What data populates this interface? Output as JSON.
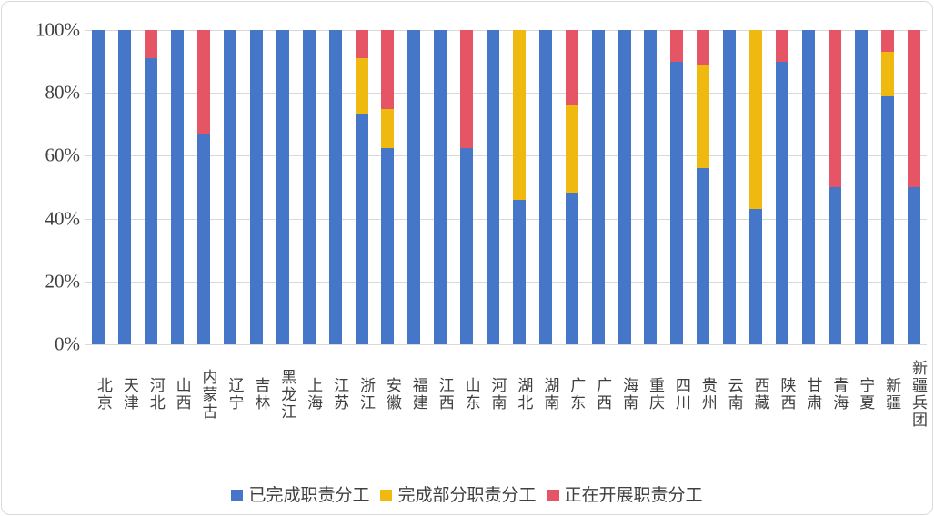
{
  "colors": {
    "blue": "#4676C8",
    "yellow": "#F0B90F",
    "red": "#E65566",
    "grid": "#D9D9D9",
    "text": "#3F3F3F"
  },
  "chart_data": {
    "type": "bar",
    "variant": "stacked-100-percent-column",
    "title": "",
    "xlabel": "",
    "ylabel": "",
    "grid": true,
    "legend_position": "bottom",
    "y_axis": {
      "range": [
        0,
        100
      ],
      "tick_labels_top_to_bottom": [
        "100%",
        "80%",
        "60%",
        "40%",
        "20%",
        "0%"
      ]
    },
    "categories": [
      "北京",
      "天津",
      "河北",
      "山西",
      "内蒙古",
      "辽宁",
      "吉林",
      "黑龙江",
      "上海",
      "江苏",
      "浙江",
      "安徽",
      "福建",
      "江西",
      "山东",
      "河南",
      "湖北",
      "湖南",
      "广东",
      "广西",
      "海南",
      "重庆",
      "四川",
      "贵州",
      "云南",
      "西藏",
      "陕西",
      "甘肃",
      "青海",
      "宁夏",
      "新疆",
      "新疆兵团"
    ],
    "series": [
      {
        "name": "已完成职责分工",
        "color_key": "blue",
        "values": [
          100,
          100,
          91,
          100,
          67,
          100,
          100,
          100,
          100,
          100,
          73,
          62.5,
          100,
          100,
          62.5,
          100,
          46,
          100,
          48,
          100,
          100,
          100,
          90,
          56,
          100,
          43,
          90,
          100,
          50,
          100,
          79,
          50
        ]
      },
      {
        "name": "完成部分职责分工",
        "color_key": "yellow",
        "values": [
          0,
          0,
          0,
          0,
          0,
          0,
          0,
          0,
          0,
          0,
          18,
          12.5,
          0,
          0,
          0,
          0,
          54,
          0,
          28,
          0,
          0,
          0,
          0,
          33,
          0,
          57,
          0,
          0,
          0,
          0,
          14,
          0
        ]
      },
      {
        "name": "正在开展职责分工",
        "color_key": "red",
        "values": [
          0,
          0,
          9,
          0,
          33,
          0,
          0,
          0,
          0,
          0,
          9,
          25,
          0,
          0,
          37.5,
          0,
          0,
          0,
          24,
          0,
          0,
          0,
          10,
          11,
          0,
          0,
          10,
          0,
          50,
          0,
          7,
          50
        ]
      }
    ]
  }
}
